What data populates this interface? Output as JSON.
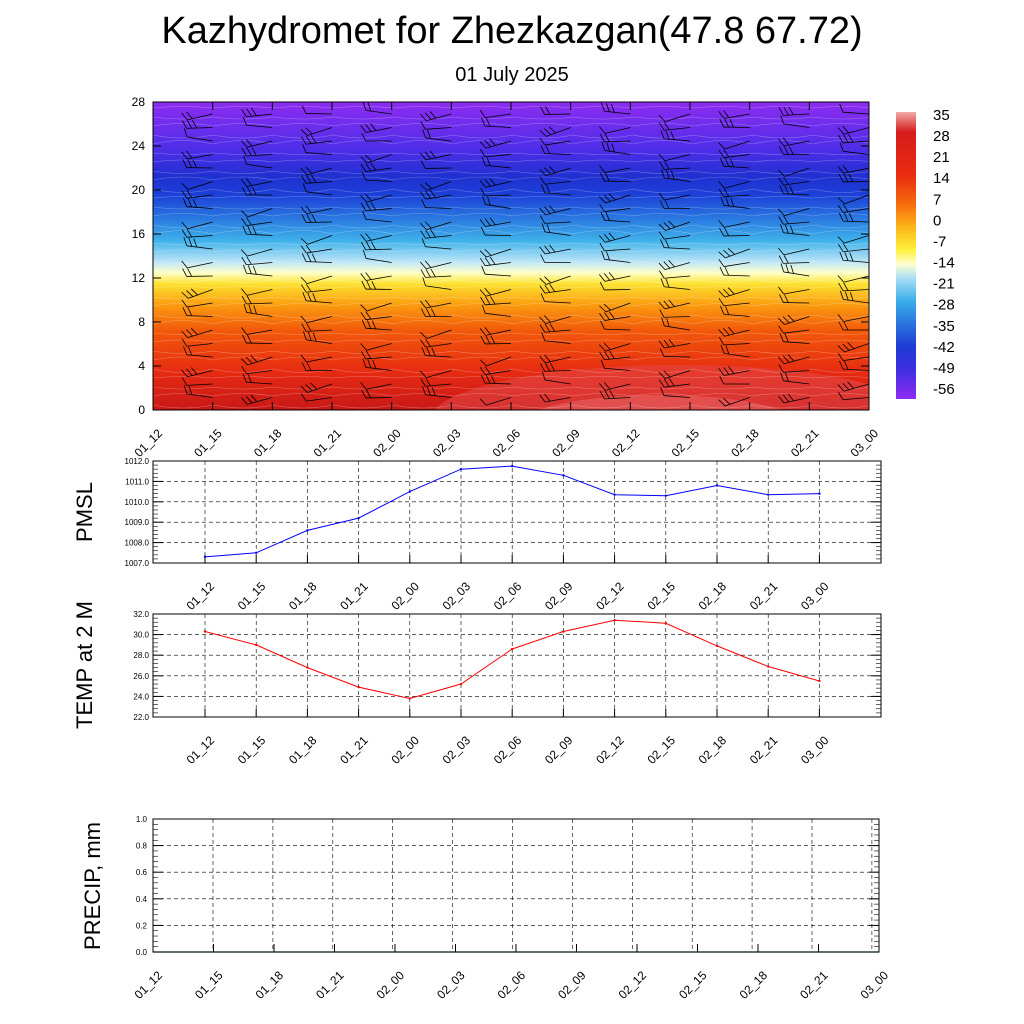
{
  "title": "Kazhydromet for Zhezkazgan(47.8 67.72)",
  "subtitle": "01 July 2025",
  "chart_data": [
    {
      "type": "heatmap",
      "name": "upper-air cross-section",
      "x_tick_labels": [
        "01_12",
        "01_15",
        "01_18",
        "01_21",
        "02_00",
        "02_03",
        "02_06",
        "02_09",
        "02_12",
        "02_15",
        "02_18",
        "02_21",
        "03_00"
      ],
      "yticks": [
        0,
        4,
        8,
        12,
        16,
        20,
        24,
        28
      ],
      "ylim": [
        0,
        28
      ],
      "colorbar_labels": [
        "35",
        "28",
        "21",
        "14",
        "7",
        "0",
        "-7",
        "-14",
        "-21",
        "-28",
        "-35",
        "-42",
        "-49",
        "-56"
      ],
      "colorbar_range": [
        -60,
        38
      ],
      "wind_barbs": true
    },
    {
      "type": "line",
      "ylabel": "PMSL",
      "x_tick_labels": [
        "01_12",
        "01_15",
        "01_18",
        "01_21",
        "02_00",
        "02_03",
        "02_06",
        "02_09",
        "02_12",
        "02_15",
        "02_18",
        "02_21",
        "03_00"
      ],
      "yticks": [
        "1007.0",
        "1008.0",
        "1009.0",
        "1010.0",
        "1011.0",
        "1012.0"
      ],
      "ylim": [
        1007.0,
        1012.0
      ],
      "values": [
        1007.3,
        1007.5,
        1008.6,
        1009.2,
        1010.5,
        1011.6,
        1011.75,
        1011.3,
        1010.35,
        1010.3,
        1010.8,
        1010.35,
        1010.4
      ],
      "color": "#0000ff",
      "grid": true
    },
    {
      "type": "line",
      "ylabel": "TEMP at 2 M",
      "x_tick_labels": [
        "01_12",
        "01_15",
        "01_18",
        "01_21",
        "02_00",
        "02_03",
        "02_06",
        "02_09",
        "02_12",
        "02_15",
        "02_18",
        "02_21",
        "03_00"
      ],
      "yticks": [
        "22.0",
        "24.0",
        "26.0",
        "28.0",
        "30.0",
        "32.0"
      ],
      "ylim": [
        22.0,
        32.0
      ],
      "values": [
        30.3,
        29.0,
        26.8,
        24.9,
        23.8,
        25.2,
        28.6,
        30.3,
        31.4,
        31.1,
        28.9,
        26.9,
        25.5
      ],
      "color": "#ff0000",
      "grid": true
    },
    {
      "type": "bar",
      "ylabel": "PRECIP, mm",
      "x_tick_labels": [
        "01_12",
        "01_15",
        "01_18",
        "01_21",
        "02_00",
        "02_03",
        "02_06",
        "02_09",
        "02_12",
        "02_15",
        "02_18",
        "02_21",
        "03_00"
      ],
      "yticks": [
        "0.0",
        "0.2",
        "0.4",
        "0.6",
        "0.8",
        "1.0"
      ],
      "ylim": [
        0,
        1.0
      ],
      "values": [
        0,
        0,
        0,
        0,
        0,
        0,
        0,
        0,
        0,
        0,
        0,
        0
      ],
      "color": "#008000",
      "grid": true
    }
  ]
}
